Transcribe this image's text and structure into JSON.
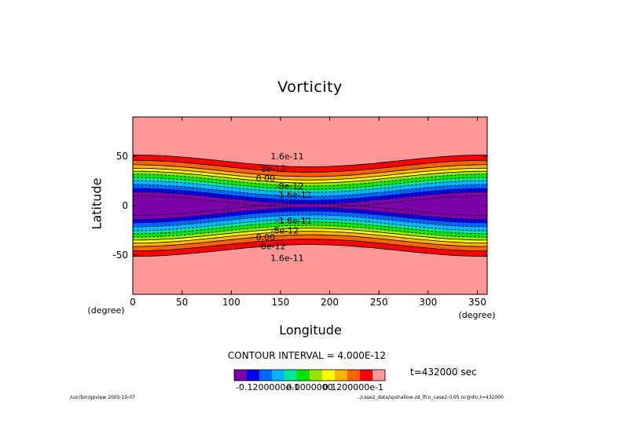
{
  "chart_data": {
    "type": "contour",
    "title": "Vorticity",
    "xlabel": "Longitude",
    "ylabel": "Latitude",
    "x_unit": "(degree)",
    "y_unit": "(degree)",
    "xlim": [
      0,
      360
    ],
    "ylim": [
      -90,
      90
    ],
    "x_ticks": [
      0,
      50,
      100,
      150,
      200,
      250,
      300,
      350
    ],
    "y_ticks": [
      -50,
      0,
      50
    ],
    "contour_interval": "CONTOUR INTERVAL = 4.000E-12",
    "time": "t=432000 sec",
    "contour_labels": [
      {
        "text": "1.6e-11",
        "lon": 140,
        "lat": 50
      },
      {
        "text": "8e-12",
        "lon": 130,
        "lat": 38
      },
      {
        "text": "0.00",
        "lon": 125,
        "lat": 28
      },
      {
        "text": "-8e-12",
        "lon": 145,
        "lat": 20
      },
      {
        "text": "-1.6e-11",
        "lon": 145,
        "lat": 11
      },
      {
        "text": "-1.6e-11",
        "lon": 145,
        "lat": -15
      },
      {
        "text": "-8e-12",
        "lon": 140,
        "lat": -25
      },
      {
        "text": "0.00",
        "lon": 125,
        "lat": -32
      },
      {
        "text": "8e-12",
        "lon": 130,
        "lat": -41
      },
      {
        "text": "1.6e-11",
        "lon": 140,
        "lat": -53
      }
    ],
    "colorbar": {
      "colors": [
        "#7b00a8",
        "#0000e6",
        "#0064ff",
        "#00b4ff",
        "#00e6a0",
        "#00e600",
        "#96e600",
        "#ffff00",
        "#ffb400",
        "#ff6400",
        "#ff0000",
        "#ff9999"
      ],
      "tick_labels": [
        "-0.1200000e-1",
        "0.0000000",
        "0.1200000e-1"
      ]
    }
  },
  "footer": {
    "left": "/usr/bin/gpview  2005-10-07",
    "right": "../case2_data/spshallow-zd_lfcn_case2-0.05.nc@div,t=432000"
  }
}
